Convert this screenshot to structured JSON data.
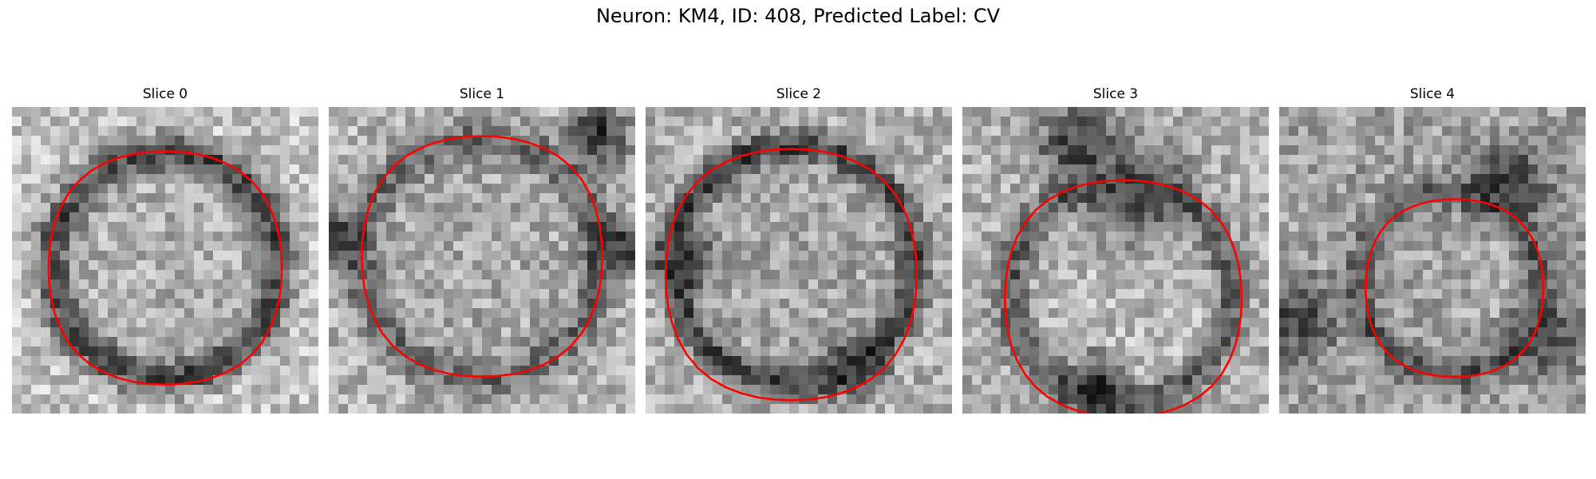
{
  "figure": {
    "title": "Neuron: KM4, ID: 408, Predicted Label: CV"
  },
  "slices": [
    {
      "title": "Slice 0"
    },
    {
      "title": "Slice 1"
    },
    {
      "title": "Slice 2"
    },
    {
      "title": "Slice 3"
    },
    {
      "title": "Slice 4"
    }
  ],
  "colors": {
    "contour": "#ff0000",
    "colormap": "grayscale"
  }
}
